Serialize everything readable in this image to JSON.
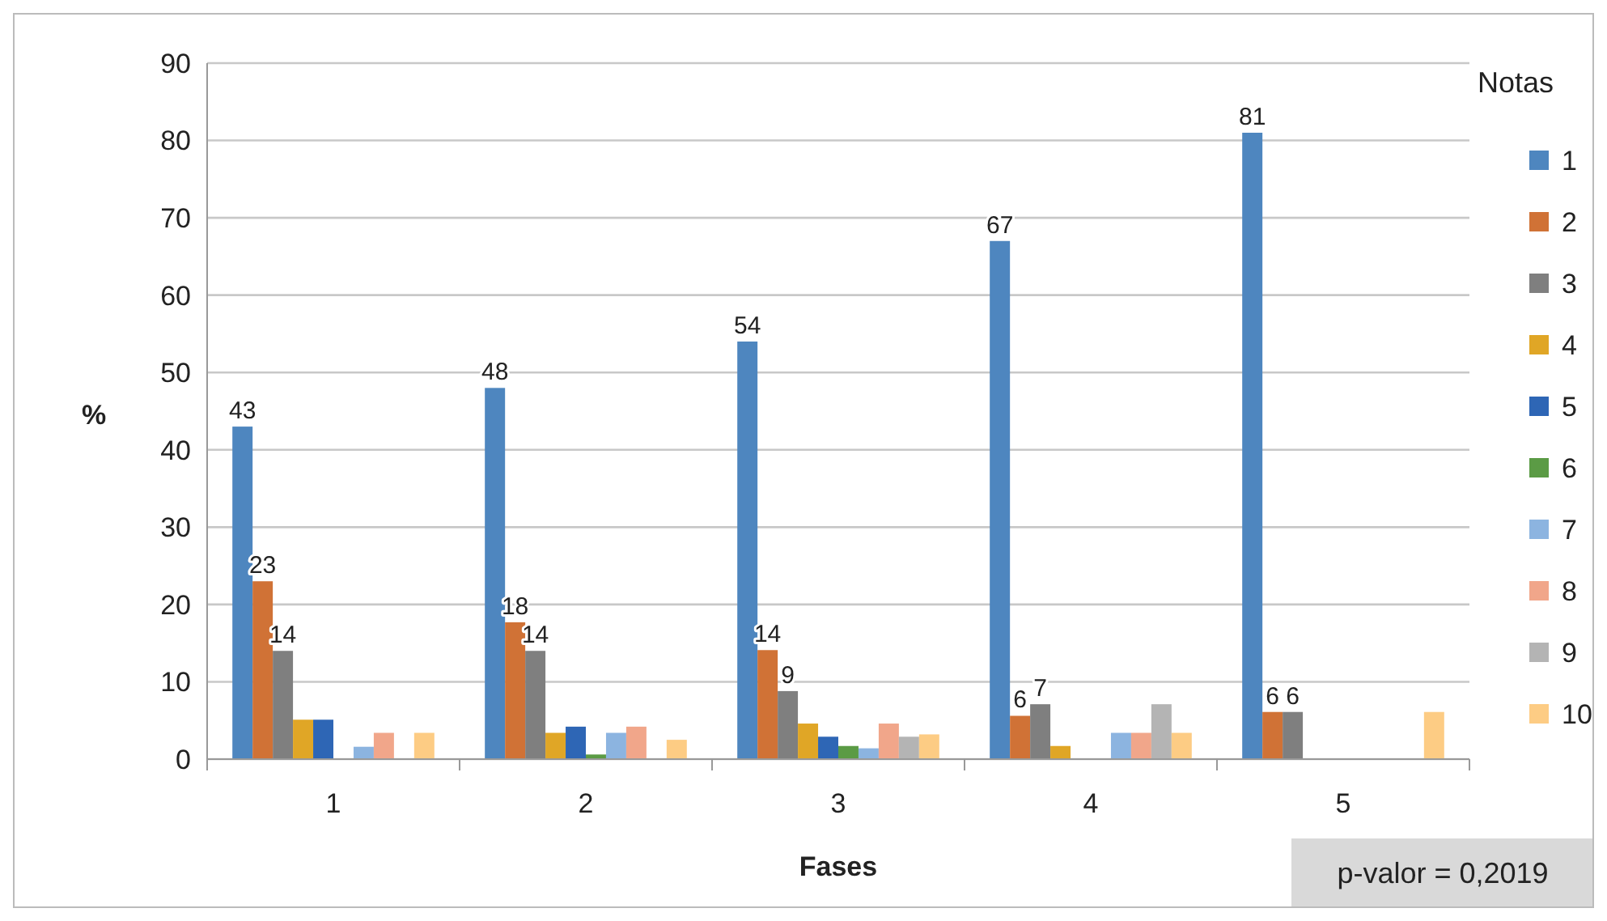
{
  "chart_data": {
    "type": "bar",
    "xlabel": "Fases",
    "ylabel": "%",
    "legend_title": "Notas",
    "legend": "right",
    "grid": "y",
    "categories": [
      "1",
      "2",
      "3",
      "4",
      "5"
    ],
    "ylim": [
      0,
      90
    ],
    "yticks": [
      0,
      10,
      20,
      30,
      40,
      50,
      60,
      70,
      80,
      90
    ],
    "annotations": [
      "p-valor = 0,2019"
    ],
    "series": [
      {
        "name": "1",
        "color": "#4e86bf",
        "values": [
          43,
          48,
          54,
          67,
          81
        ],
        "value_labels": [
          "43",
          "48",
          "54",
          "67",
          "81"
        ]
      },
      {
        "name": "2",
        "color": "#d07236",
        "values": [
          23,
          17.7,
          14.1,
          5.6,
          6.1
        ],
        "value_labels": [
          "23",
          "18",
          "14",
          "6",
          "6"
        ]
      },
      {
        "name": "3",
        "color": "#7f7f7f",
        "values": [
          14,
          14,
          8.8,
          7.1,
          6.1
        ],
        "value_labels": [
          "14",
          "14",
          "9",
          "7",
          "6"
        ]
      },
      {
        "name": "4",
        "color": "#e0a626",
        "values": [
          5.1,
          3.4,
          4.6,
          1.7,
          0
        ]
      },
      {
        "name": "5",
        "color": "#2e66b5",
        "values": [
          5.1,
          4.2,
          2.9,
          0,
          0
        ]
      },
      {
        "name": "6",
        "color": "#5b9b45",
        "values": [
          0,
          0.6,
          1.7,
          0,
          0
        ]
      },
      {
        "name": "7",
        "color": "#8cb4e0",
        "values": [
          1.6,
          3.4,
          1.4,
          3.4,
          0
        ]
      },
      {
        "name": "8",
        "color": "#f1a68a",
        "values": [
          3.4,
          4.2,
          4.6,
          3.4,
          0
        ]
      },
      {
        "name": "9",
        "color": "#b4b4b4",
        "values": [
          0,
          0,
          2.9,
          7.1,
          0
        ]
      },
      {
        "name": "10",
        "color": "#fdcc84",
        "values": [
          3.4,
          2.5,
          3.2,
          3.4,
          6.1
        ]
      }
    ]
  }
}
